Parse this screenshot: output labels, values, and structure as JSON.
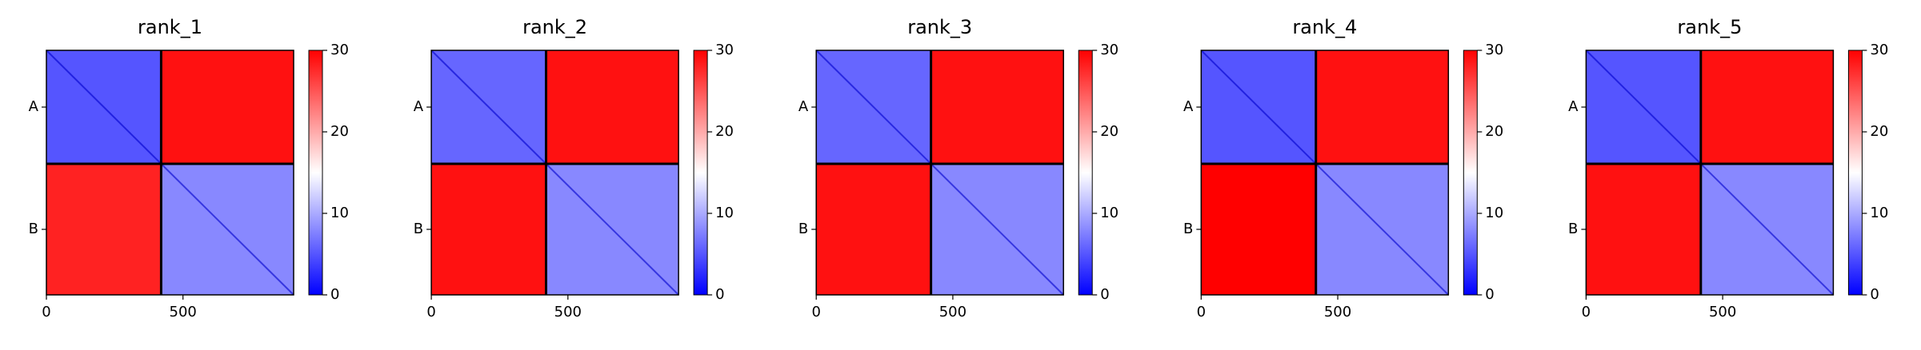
{
  "chart_data": [
    {
      "type": "heatmap",
      "title": "rank_1",
      "xlim": [
        0,
        905
      ],
      "xticks": [
        0,
        500
      ],
      "y_categories": [
        "A",
        "B"
      ],
      "chain_break": 420,
      "values": [
        [
          5,
          29
        ],
        [
          28,
          8
        ]
      ],
      "clim": [
        0,
        30
      ],
      "cticks": [
        0,
        10,
        20,
        30
      ],
      "colormap": "bwr"
    },
    {
      "type": "heatmap",
      "title": "rank_2",
      "xlim": [
        0,
        905
      ],
      "xticks": [
        0,
        500
      ],
      "y_categories": [
        "A",
        "B"
      ],
      "chain_break": 420,
      "values": [
        [
          6,
          29
        ],
        [
          29,
          8
        ]
      ],
      "clim": [
        0,
        30
      ],
      "cticks": [
        0,
        10,
        20,
        30
      ],
      "colormap": "bwr"
    },
    {
      "type": "heatmap",
      "title": "rank_3",
      "xlim": [
        0,
        905
      ],
      "xticks": [
        0,
        500
      ],
      "y_categories": [
        "A",
        "B"
      ],
      "chain_break": 420,
      "values": [
        [
          6,
          29
        ],
        [
          29,
          8
        ]
      ],
      "clim": [
        0,
        30
      ],
      "cticks": [
        0,
        10,
        20,
        30
      ],
      "colormap": "bwr"
    },
    {
      "type": "heatmap",
      "title": "rank_4",
      "xlim": [
        0,
        905
      ],
      "xticks": [
        0,
        500
      ],
      "y_categories": [
        "A",
        "B"
      ],
      "chain_break": 420,
      "values": [
        [
          5,
          29
        ],
        [
          30,
          8
        ]
      ],
      "clim": [
        0,
        30
      ],
      "cticks": [
        0,
        10,
        20,
        30
      ],
      "colormap": "bwr"
    },
    {
      "type": "heatmap",
      "title": "rank_5",
      "xlim": [
        0,
        905
      ],
      "xticks": [
        0,
        500
      ],
      "y_categories": [
        "A",
        "B"
      ],
      "chain_break": 420,
      "values": [
        [
          5,
          29
        ],
        [
          29,
          8
        ]
      ],
      "clim": [
        0,
        30
      ],
      "cticks": [
        0,
        10,
        20,
        30
      ],
      "colormap": "bwr"
    }
  ]
}
